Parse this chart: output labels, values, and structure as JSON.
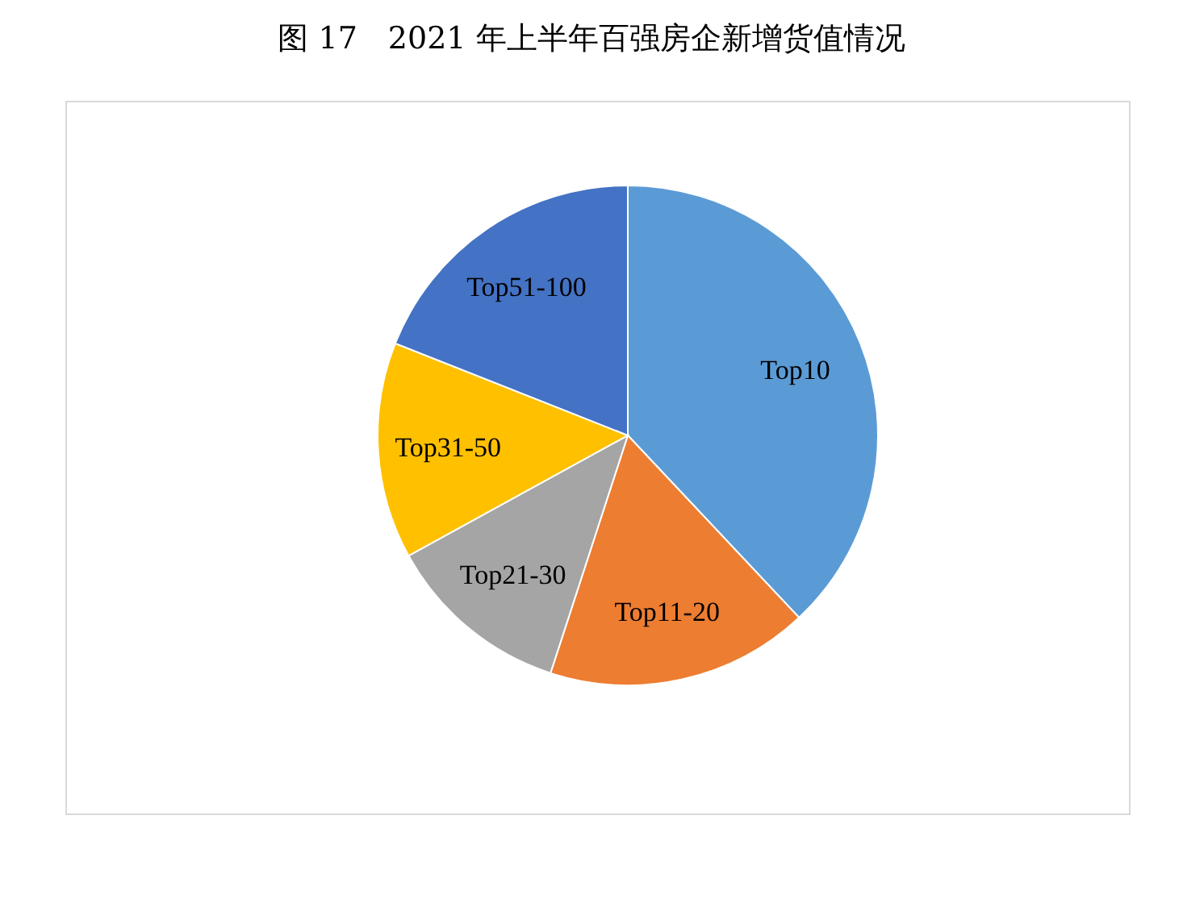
{
  "chart_data": {
    "type": "pie",
    "title": "图 17　2021 年上半年百强房企新增货值情况",
    "categories": [
      "Top10",
      "Top11-20",
      "Top21-30",
      "Top31-50",
      "Top51-100"
    ],
    "values": [
      38,
      17,
      12,
      14,
      19
    ],
    "colors": [
      "#5b9bd5",
      "#ed7d31",
      "#a5a5a5",
      "#ffc000",
      "#4472c4"
    ]
  }
}
